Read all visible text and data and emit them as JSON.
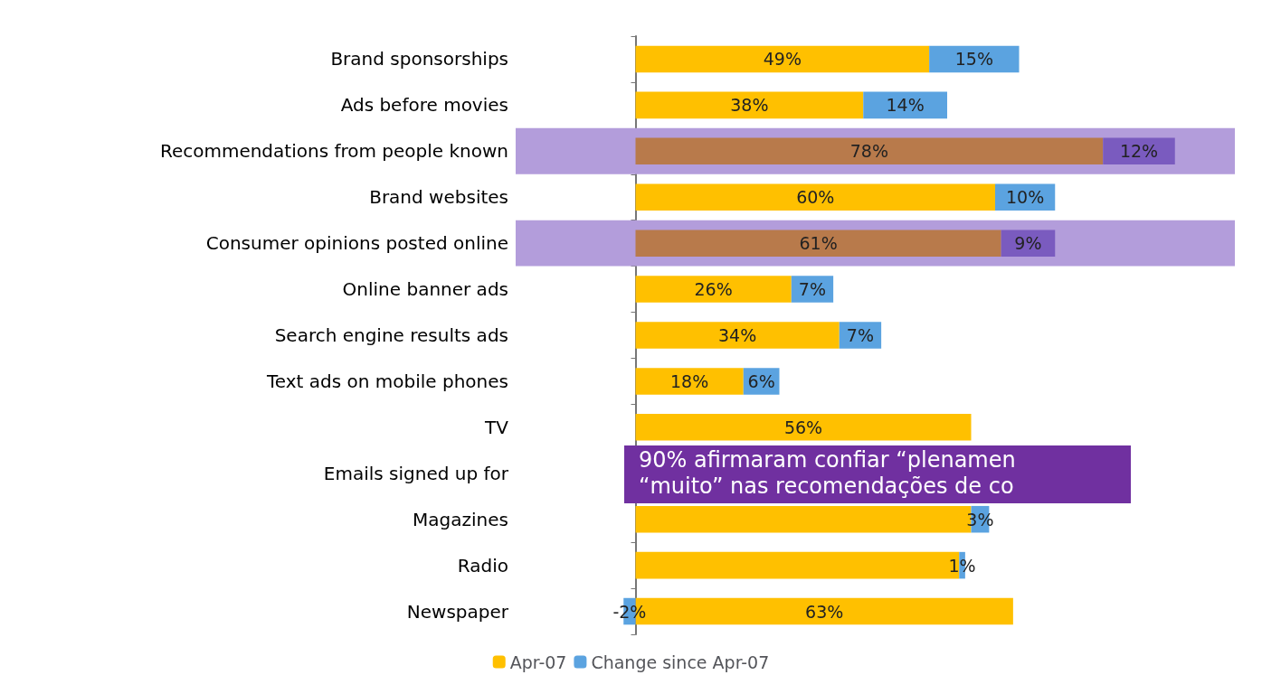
{
  "chart_data": {
    "type": "bar",
    "orientation": "horizontal",
    "stacked": true,
    "categories": [
      "Brand sponsorships",
      "Ads before movies",
      "Recommendations from people known",
      "Brand websites",
      "Consumer opinions posted online",
      "Online banner ads",
      "Search engine results ads",
      "Text ads on mobile phones",
      "TV",
      "Emails signed up for",
      "Magazines",
      "Radio",
      "Newspaper"
    ],
    "series": [
      {
        "name": "Apr-07",
        "color": "#ffc000",
        "colors": [
          "#ffc000",
          "#ffc000",
          "#b87a4b",
          "#ffc000",
          "#b87a4b",
          "#ffc000",
          "#ffc000",
          "#ffc000",
          "#ffc000",
          null,
          "#ffc000",
          "#ffc000",
          "#ffc000"
        ],
        "values": [
          49,
          38,
          78,
          60,
          61,
          26,
          34,
          18,
          56,
          null,
          56,
          54,
          63
        ],
        "value_labels": [
          "49%",
          "38%",
          "78%",
          "60%",
          "61%",
          "26%",
          "34%",
          "18%",
          "56%",
          null,
          null,
          null,
          "63%"
        ]
      },
      {
        "name": "Change since Apr-07",
        "color": "#5ba3e0",
        "colors": [
          "#5ba3e0",
          "#5ba3e0",
          "#7a5bbf",
          "#5ba3e0",
          "#7a5bbf",
          "#5ba3e0",
          "#5ba3e0",
          "#5ba3e0",
          null,
          null,
          "#5ba3e0",
          "#5ba3e0",
          "#5ba3e0"
        ],
        "values": [
          15,
          14,
          12,
          10,
          9,
          7,
          7,
          6,
          null,
          null,
          3,
          1,
          -2
        ],
        "value_labels": [
          "15%",
          "14%",
          "12%",
          "10%",
          "9%",
          "7%",
          "7%",
          "6%",
          null,
          null,
          "3%",
          "1%",
          "-2%"
        ]
      }
    ],
    "tick_labels": "y",
    "bands": [
      {
        "axis": "y",
        "from": "Recommendations from people known",
        "to": "Recommendations from people known",
        "color": "#b39ddb"
      },
      {
        "axis": "y",
        "from": "Consumer opinions posted online",
        "to": "Consumer opinions posted online",
        "color": "#b39ddb"
      }
    ],
    "legend": "bottom",
    "annotations": [
      "90% afirmaram confiar “plenamen",
      "“muito” nas recomendações de co"
    ]
  }
}
